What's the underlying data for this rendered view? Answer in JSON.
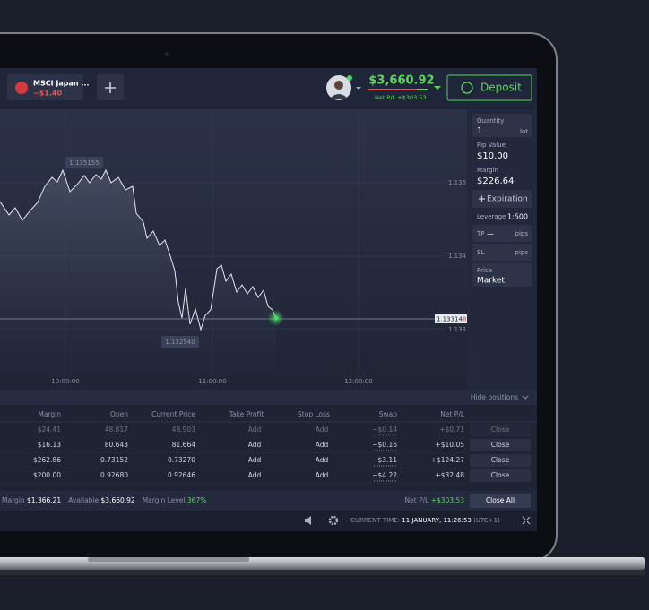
{
  "tab": {
    "label": "MSCI Japan ...",
    "pl": "−$1.40"
  },
  "account": {
    "balance": "$3,660.92",
    "net_pl_label": "Net P/L",
    "net_pl": "+$303.53",
    "deposit": "Deposit"
  },
  "order_panel": {
    "quantity_label": "Quantity",
    "quantity": "1",
    "quantity_unit": "lot",
    "pip_value_label": "Pip Value",
    "pip_value": "$10.00",
    "margin_label": "Margin",
    "margin": "$226.64",
    "expiration": "Expiration",
    "leverage_label": "Leverage",
    "leverage": "1:500",
    "tp_label": "TP",
    "tp_value": "—",
    "tp_unit": "pips",
    "sl_label": "SL",
    "sl_value": "—",
    "sl_unit": "pips",
    "price_label": "Price",
    "price": "Market"
  },
  "chart": {
    "high_label": "1.135155",
    "low_label": "1.132940",
    "price_axis": [
      "1.135",
      "1.134",
      "1.133"
    ],
    "current_price": "1.13314",
    "current_price_last_digit": "8",
    "time_axis": [
      "10:00:00",
      "11:00:00",
      "12:00:00"
    ]
  },
  "positions": {
    "toggle": "Hide positions",
    "headers": [
      "Margin",
      "Open",
      "Current Price",
      "Take Profit",
      "Stop Loss",
      "Swap",
      "Net P/L"
    ],
    "rows": [
      [
        "$24.41",
        "48.817",
        "48.903",
        "Add",
        "Add",
        "−$0.14",
        "+$0.71",
        "Close"
      ],
      [
        "$16.13",
        "80.643",
        "81.664",
        "Add",
        "Add",
        "−$0.16",
        "+$10.05",
        "Close"
      ],
      [
        "$262.86",
        "0.73152",
        "0.73270",
        "Add",
        "Add",
        "−$3.11",
        "+$124.27",
        "Close"
      ],
      [
        "$200.00",
        "0.92680",
        "0.92646",
        "Add",
        "Add",
        "−$4.22",
        "+$32.48",
        "Close"
      ]
    ],
    "footer": {
      "margin_label": "Margin",
      "margin": "$1,366.21",
      "available_label": "Available",
      "available": "$3,660.92",
      "margin_level_label": "Margin Level",
      "margin_level": "367%",
      "net_pl_label": "Net P/L",
      "net_pl": "+$303.53",
      "close_all": "Close All"
    }
  },
  "status": {
    "time_label": "CURRENT TIME:",
    "time": "11 JANUARY, 11:26:53",
    "timezone": "(UTC+1)"
  }
}
